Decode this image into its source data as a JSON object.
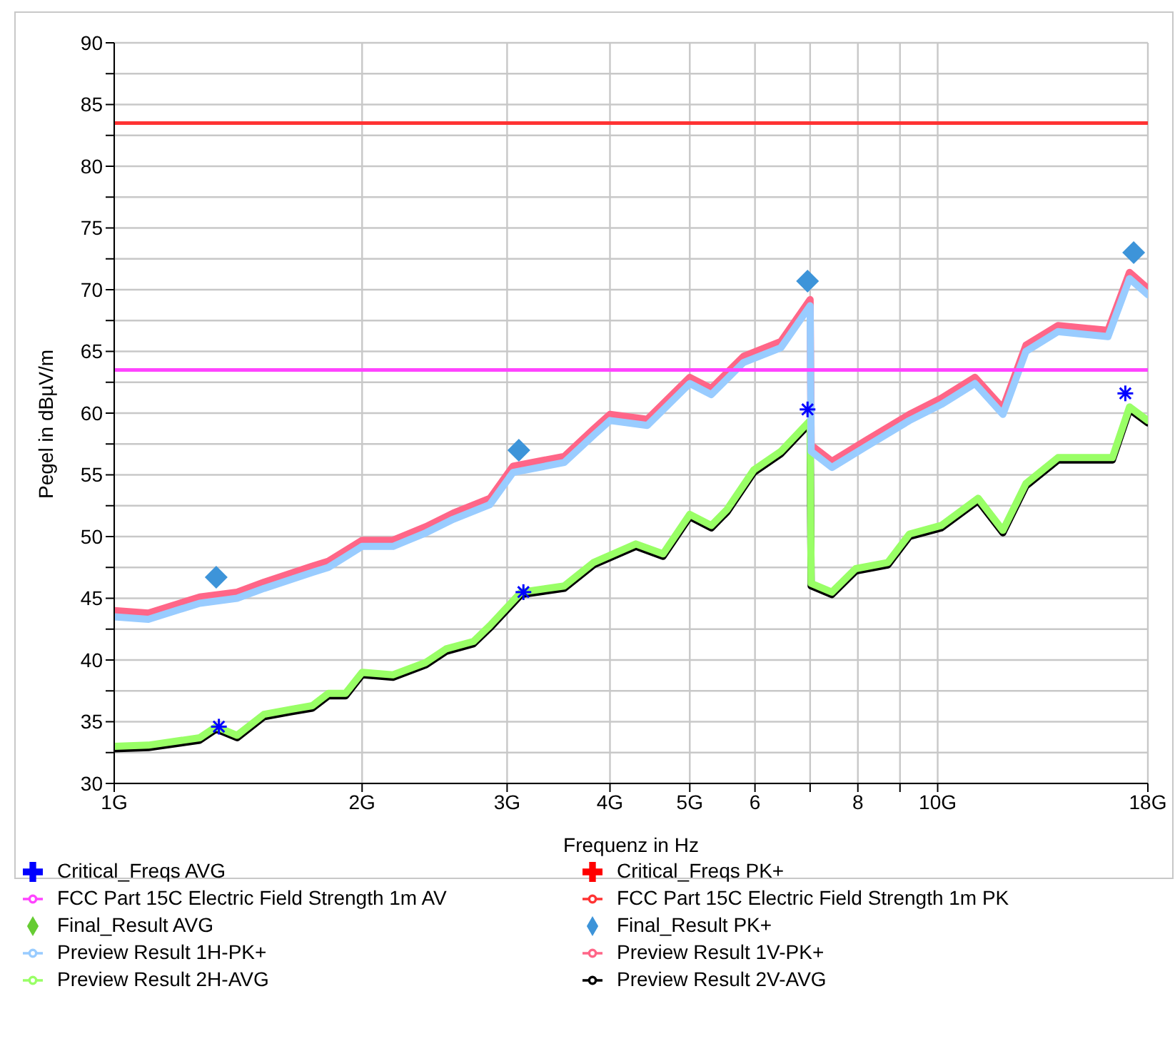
{
  "chart_data": {
    "type": "line",
    "xlabel": "Frequenz in Hz",
    "ylabel": "Pegel in dBµV/m",
    "log": "x",
    "grid": true,
    "legend": "bottom",
    "line_style": "solid",
    "marker": "none",
    "xlim": [
      1,
      18
    ],
    "xticks": [
      {
        "value": 1,
        "label": "1G"
      },
      {
        "value": 2,
        "label": "2G"
      },
      {
        "value": 3,
        "label": "3G"
      },
      {
        "value": 4,
        "label": "4G"
      },
      {
        "value": 5,
        "label": "5G"
      },
      6,
      {
        "value": 7,
        "label": null
      },
      8,
      {
        "value": 9,
        "label": null
      },
      {
        "value": 10,
        "label": "10G"
      },
      {
        "value": 18,
        "label": "18G"
      }
    ],
    "ylim": [
      30,
      90
    ],
    "yticks": [
      30,
      {
        "value": 32.5,
        "label": null
      },
      35,
      {
        "value": 37.5,
        "label": null
      },
      40,
      {
        "value": 42.5,
        "label": null
      },
      45,
      {
        "value": 47.5,
        "label": null
      },
      50,
      {
        "value": 52.5,
        "label": null
      },
      55,
      {
        "value": 57.5,
        "label": null
      },
      60,
      {
        "value": 62.5,
        "label": null
      },
      65,
      {
        "value": 67.5,
        "label": null
      },
      70,
      {
        "value": 72.5,
        "label": null
      },
      75,
      {
        "value": 77.5,
        "label": null
      },
      80,
      {
        "value": 82.5,
        "label": null
      },
      85,
      {
        "value": 87.5,
        "label": null
      },
      90
    ],
    "series": [
      {
        "name": "Preview Result 2V-AVG",
        "color": "#000000",
        "x": [
          1,
          1.1,
          1.27,
          1.33,
          1.41,
          1.52,
          1.64,
          1.74,
          1.82,
          1.91,
          2,
          2.18,
          2.39,
          2.53,
          2.73,
          2.86,
          3.12,
          3.52,
          3.82,
          4.3,
          4.64,
          5,
          5.31,
          5.55,
          5.98,
          6.45,
          7,
          7.02,
          7.44,
          7.95,
          8.7,
          9.24,
          10.1,
          11.2,
          12,
          12.8,
          14,
          15.4,
          16.3,
          17.1,
          18
        ],
        "values": [
          32.8,
          32.9,
          33.5,
          34.4,
          33.7,
          35.4,
          35.8,
          36.1,
          37.1,
          37.1,
          38.8,
          38.6,
          39.6,
          40.7,
          41.3,
          42.6,
          45.3,
          45.8,
          47.7,
          49.2,
          48.4,
          51.6,
          50.7,
          52,
          55.2,
          56.7,
          59.2,
          46,
          45.3,
          47.2,
          47.7,
          50,
          50.7,
          52.9,
          50.3,
          54.1,
          56.2,
          56.2,
          56.2,
          60.3,
          59.2
        ]
      },
      {
        "name": "Preview Result 1V-PK+",
        "color": "#ff6688",
        "x": [
          1,
          1.1,
          1.27,
          1.41,
          1.52,
          1.74,
          1.82,
          2,
          2.18,
          2.39,
          2.58,
          2.86,
          3.05,
          3.52,
          3.82,
          4,
          4.44,
          5,
          5.31,
          5.81,
          6.45,
          7,
          7.02,
          7.44,
          8.19,
          9.24,
          10.1,
          11.1,
          12,
          12.8,
          14,
          16.1,
          17.1,
          18
        ],
        "values": [
          44,
          43.8,
          45.1,
          45.5,
          46.3,
          47.6,
          48,
          49.7,
          49.7,
          50.8,
          51.9,
          53.1,
          55.7,
          56.5,
          58.7,
          59.9,
          59.5,
          62.9,
          62,
          64.6,
          65.8,
          69.2,
          57.4,
          56.1,
          57.8,
          59.9,
          61.2,
          62.9,
          60.4,
          65.5,
          67.1,
          66.7,
          71.4,
          70.1
        ]
      },
      {
        "name": "Preview Result 2H-AVG",
        "color": "#99ff66",
        "x": [
          1,
          1.1,
          1.27,
          1.33,
          1.41,
          1.52,
          1.64,
          1.74,
          1.82,
          1.91,
          2,
          2.18,
          2.39,
          2.53,
          2.73,
          2.86,
          3.12,
          3.52,
          3.82,
          4.3,
          4.64,
          5,
          5.31,
          5.55,
          5.98,
          6.45,
          7,
          7.02,
          7.44,
          7.95,
          8.7,
          9.24,
          10.1,
          11.2,
          12,
          12.8,
          14,
          15.4,
          16.3,
          17.1,
          18
        ],
        "values": [
          33,
          33.1,
          33.7,
          34.6,
          33.9,
          35.6,
          36,
          36.3,
          37.3,
          37.3,
          39,
          38.8,
          39.8,
          40.9,
          41.5,
          42.8,
          45.5,
          46,
          47.9,
          49.4,
          48.6,
          51.8,
          50.9,
          52.2,
          55.4,
          56.9,
          59.4,
          46.2,
          45.5,
          47.4,
          47.9,
          50.2,
          50.9,
          53.1,
          50.5,
          54.3,
          56.4,
          56.4,
          56.4,
          60.5,
          59.4
        ]
      },
      {
        "name": "Preview Result 1H-PK+",
        "color": "#99ccff",
        "x": [
          1,
          1.1,
          1.27,
          1.41,
          1.52,
          1.74,
          1.82,
          2,
          2.18,
          2.39,
          2.58,
          2.86,
          3.05,
          3.52,
          3.82,
          4,
          4.44,
          5,
          5.31,
          5.81,
          6.45,
          7,
          7.02,
          7.44,
          8.19,
          9.24,
          10.1,
          11.1,
          12,
          12.8,
          14,
          16.1,
          17.1,
          18
        ],
        "values": [
          43.5,
          43.3,
          44.6,
          45,
          45.8,
          47.1,
          47.5,
          49.2,
          49.2,
          50.3,
          51.4,
          52.6,
          55.2,
          56,
          58.2,
          59.4,
          59,
          62.4,
          61.5,
          64.1,
          65.3,
          68.7,
          56.9,
          55.6,
          57.3,
          59.4,
          60.7,
          62.4,
          59.9,
          65,
          66.6,
          66.2,
          70.9,
          69.6
        ]
      },
      {
        "name": "Critical_Freqs AVG",
        "type": "scatter",
        "marker": "cross",
        "color": "#0000ff",
        "x": [
          1.34,
          3.14,
          6.95,
          16.9
        ],
        "values": [
          34.6,
          45.5,
          60.3,
          61.6
        ]
      },
      {
        "name": "Critical_Freqs PK+",
        "type": "scatter",
        "marker": "cross",
        "color": "#ff0000"
      },
      {
        "name": "FCC Part 15C Electric Field Strength 1m PK",
        "color": "#ff3333",
        "x": [
          1,
          18
        ],
        "values": [
          83.5,
          83.5
        ]
      },
      {
        "name": "FCC Part 15C Electric Field Strength 1m AV",
        "color": "#ff44ff",
        "x": [
          1,
          18
        ],
        "values": [
          63.5,
          63.5
        ]
      },
      {
        "name": "Final_Result PK+",
        "type": "scatter",
        "marker": "diamond",
        "color": "#3d94d9",
        "x": [
          1.33,
          3.1,
          6.95,
          17.3
        ],
        "values": [
          46.7,
          57,
          70.7,
          73
        ]
      },
      {
        "name": "Final_Result AVG",
        "type": "scatter",
        "marker": "diamond",
        "color": "#66cc33"
      }
    ]
  }
}
